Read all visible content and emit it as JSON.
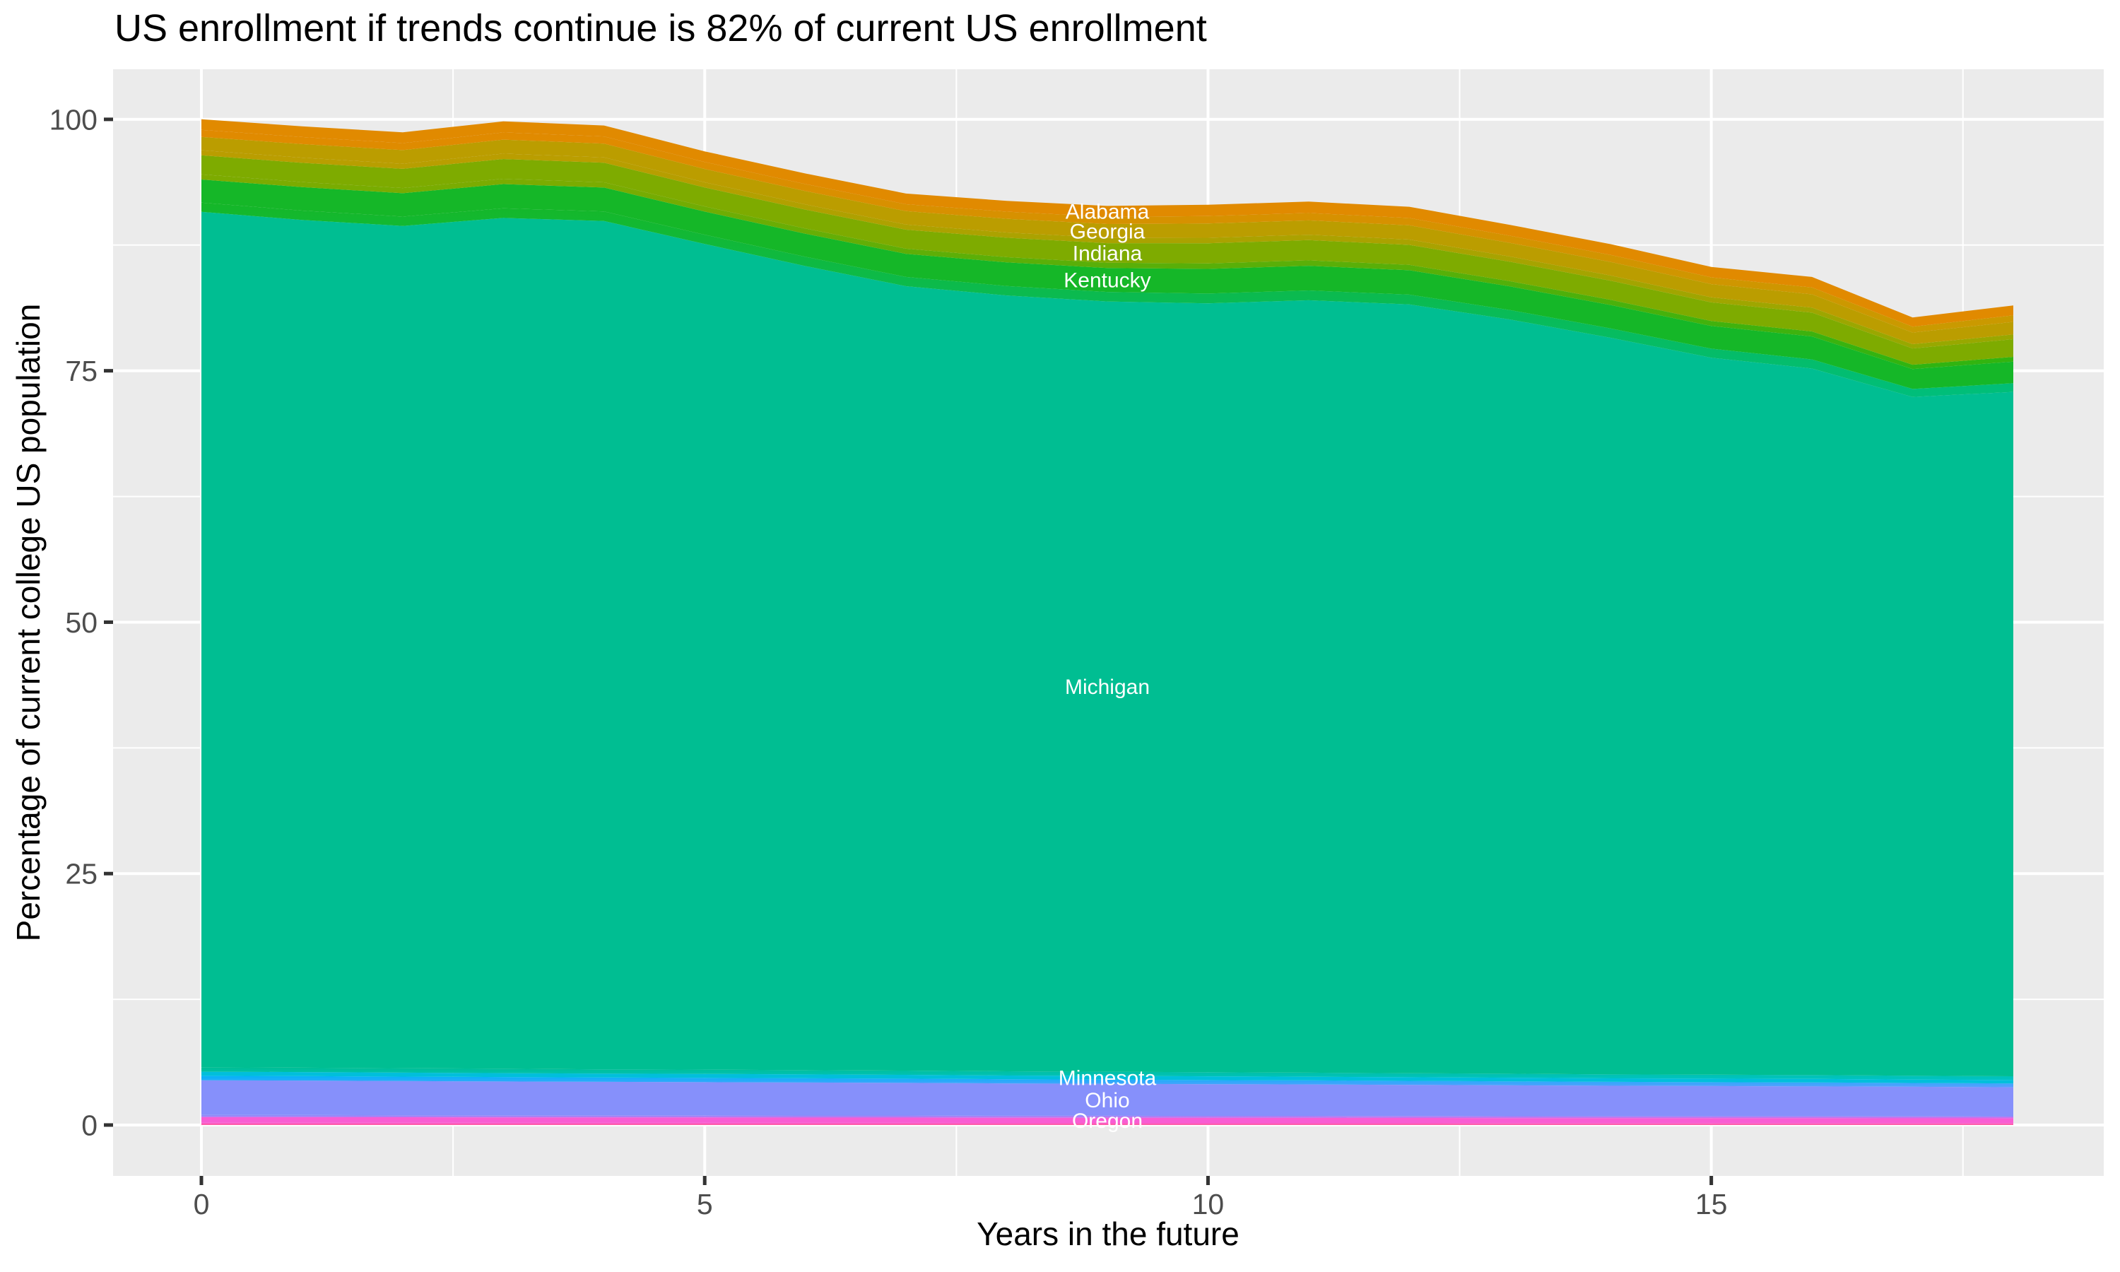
{
  "title": "US enrollment if trends continue is 82% of current US enrollment",
  "axes": {
    "x": {
      "title": "Years in the future",
      "major_ticks": {
        "values": [
          0,
          5,
          10,
          15
        ],
        "labels": [
          "0",
          "5",
          "10",
          "15"
        ]
      },
      "minor_ticks": [
        2.5,
        7.5,
        12.5,
        17.5
      ],
      "range": [
        0,
        18
      ]
    },
    "y": {
      "title": "Percentage of current college US population",
      "major_ticks": {
        "values": [
          0,
          25,
          50,
          75,
          100
        ],
        "labels": [
          "0",
          "25",
          "50",
          "75",
          "100"
        ]
      },
      "minor_ticks": [
        12.5,
        37.5,
        62.5,
        87.5
      ],
      "range": [
        0,
        100
      ]
    }
  },
  "theme": {
    "panel_bg": "#EBEBEB",
    "grid_color": "#FFFFFF",
    "tick_mark_color": "#333333",
    "tick_label_color": "#4D4D4D",
    "title_color": "#000000",
    "axis_title_color": "#000000",
    "area_label_color": "#FFFFFF"
  },
  "chart_data": {
    "type": "area",
    "stacked": true,
    "title": "US enrollment if trends continue is 82% of current US enrollment",
    "xlabel": "Years in the future",
    "ylabel": "Percentage of current college US population",
    "xlim": [
      0,
      18
    ],
    "ylim": [
      0,
      100
    ],
    "grid": true,
    "legend": "none",
    "label_year": 9,
    "x": [
      0,
      1,
      2,
      3,
      4,
      5,
      6,
      7,
      8,
      9,
      10,
      11,
      12,
      13,
      14,
      15,
      16,
      17,
      18
    ],
    "series": [
      {
        "name": "other-states-below-oregon",
        "labeled": false,
        "color_top": "#F85DD3",
        "color_bottom": "#FF5C9C",
        "values": [
          0.23,
          0.23,
          0.23,
          0.22,
          0.22,
          0.22,
          0.22,
          0.22,
          0.21,
          0.21,
          0.21,
          0.21,
          0.21,
          0.2,
          0.2,
          0.2,
          0.2,
          0.2,
          0.19
        ]
      },
      {
        "name": "Oregon",
        "labeled": true,
        "color": "#F85DD3",
        "values": [
          0.55,
          0.55,
          0.54,
          0.54,
          0.53,
          0.53,
          0.52,
          0.52,
          0.51,
          0.51,
          0.5,
          0.5,
          0.49,
          0.49,
          0.48,
          0.48,
          0.48,
          0.47,
          0.47
        ]
      },
      {
        "name": "other-states-ohio-oregon",
        "labeled": false,
        "color_top": "#8690FB",
        "color_bottom": "#DA6BEA",
        "values": [
          0.22,
          0.22,
          0.21,
          0.21,
          0.21,
          0.21,
          0.21,
          0.21,
          0.2,
          0.2,
          0.2,
          0.2,
          0.2,
          0.19,
          0.19,
          0.19,
          0.19,
          0.19,
          0.18
        ]
      },
      {
        "name": "Ohio",
        "labeled": true,
        "color": "#8690FB",
        "values": [
          3.45,
          3.42,
          3.39,
          3.36,
          3.33,
          3.3,
          3.27,
          3.24,
          3.21,
          3.18,
          3.15,
          3.12,
          3.09,
          3.06,
          3.03,
          3.0,
          2.97,
          2.94,
          2.91
        ]
      },
      {
        "name": "other-states-minnesota-ohio",
        "labeled": false,
        "color_top": "#00B4F6",
        "color_bottom": "#5B9EFF",
        "values": [
          0.45,
          0.44,
          0.44,
          0.44,
          0.43,
          0.43,
          0.43,
          0.42,
          0.42,
          0.41,
          0.41,
          0.41,
          0.4,
          0.4,
          0.39,
          0.39,
          0.39,
          0.38,
          0.38
        ]
      },
      {
        "name": "Minnesota",
        "labeled": true,
        "color": "#00BFDB",
        "values": [
          0.4,
          0.4,
          0.4,
          0.39,
          0.39,
          0.39,
          0.38,
          0.38,
          0.37,
          0.37,
          0.37,
          0.36,
          0.36,
          0.36,
          0.35,
          0.35,
          0.35,
          0.34,
          0.34
        ]
      },
      {
        "name": "other-states-michigan-minnesota",
        "labeled": false,
        "color_top": "#00BE92",
        "color_bottom": "#00C3C7",
        "values": [
          0.45,
          0.44,
          0.44,
          0.44,
          0.43,
          0.43,
          0.43,
          0.42,
          0.42,
          0.41,
          0.41,
          0.41,
          0.4,
          0.4,
          0.39,
          0.39,
          0.39,
          0.38,
          0.38
        ]
      },
      {
        "name": "Michigan",
        "labeled": true,
        "color": "#00BE92",
        "values": [
          85.05,
          84.3,
          83.75,
          84.6,
          84.35,
          82.1,
          79.95,
          78.0,
          77.15,
          76.6,
          76.45,
          76.8,
          76.45,
          75.0,
          73.25,
          71.3,
          70.25,
          67.5,
          68.05
        ]
      },
      {
        "name": "other-states-kentucky-michigan",
        "labeled": false,
        "color_top": "#15B728",
        "color_bottom": "#00BE7B",
        "values": [
          0.92,
          0.93,
          0.93,
          0.96,
          0.95,
          0.92,
          0.92,
          0.92,
          0.94,
          0.95,
          0.98,
          0.98,
          0.97,
          0.94,
          0.93,
          0.9,
          0.91,
          0.79,
          0.86
        ]
      },
      {
        "name": "Kentucky",
        "labeled": true,
        "color": "#15B728",
        "values": [
          2.3,
          2.33,
          2.33,
          2.4,
          2.38,
          2.3,
          2.3,
          2.3,
          2.35,
          2.38,
          2.45,
          2.45,
          2.43,
          2.35,
          2.33,
          2.25,
          2.28,
          1.98,
          2.15
        ]
      },
      {
        "name": "other-states-indiana-kentucky",
        "labeled": false,
        "color_top": "#7EAB00",
        "color_bottom": "#2FB411",
        "values": [
          0.51,
          0.51,
          0.51,
          0.53,
          0.52,
          0.51,
          0.51,
          0.51,
          0.52,
          0.52,
          0.54,
          0.54,
          0.53,
          0.52,
          0.51,
          0.5,
          0.5,
          0.43,
          0.47
        ]
      },
      {
        "name": "Indiana",
        "labeled": true,
        "color": "#7EAB00",
        "values": [
          1.89,
          1.91,
          1.91,
          1.97,
          1.95,
          1.89,
          1.89,
          1.89,
          1.93,
          1.95,
          2.01,
          2.01,
          1.99,
          1.93,
          1.91,
          1.85,
          1.87,
          1.62,
          1.76
        ]
      },
      {
        "name": "other-states-georgia-indiana",
        "labeled": false,
        "color_top": "#BB9D00",
        "color_bottom": "#97A800",
        "values": [
          0.51,
          0.51,
          0.51,
          0.53,
          0.52,
          0.51,
          0.51,
          0.51,
          0.52,
          0.52,
          0.54,
          0.54,
          0.53,
          0.52,
          0.51,
          0.5,
          0.5,
          0.43,
          0.47
        ]
      },
      {
        "name": "Georgia",
        "labeled": true,
        "color": "#BB9D00",
        "values": [
          1.33,
          1.35,
          1.35,
          1.39,
          1.38,
          1.33,
          1.33,
          1.33,
          1.36,
          1.38,
          1.42,
          1.42,
          1.41,
          1.36,
          1.35,
          1.31,
          1.32,
          1.15,
          1.25
        ]
      },
      {
        "name": "other-states-alabama-georgia",
        "labeled": false,
        "color_top": "#E18A00",
        "color_bottom": "#C99A00",
        "values": [
          0.69,
          0.7,
          0.7,
          0.72,
          0.71,
          0.69,
          0.69,
          0.69,
          0.71,
          0.71,
          0.74,
          0.74,
          0.73,
          0.71,
          0.7,
          0.68,
          0.68,
          0.59,
          0.65
        ]
      },
      {
        "name": "Alabama",
        "labeled": true,
        "color": "#E18A00",
        "values": [
          1.06,
          1.07,
          1.07,
          1.1,
          1.09,
          1.06,
          1.06,
          1.06,
          1.08,
          1.09,
          1.13,
          1.13,
          1.12,
          1.08,
          1.07,
          1.04,
          1.05,
          0.91,
          0.99
        ]
      }
    ]
  }
}
